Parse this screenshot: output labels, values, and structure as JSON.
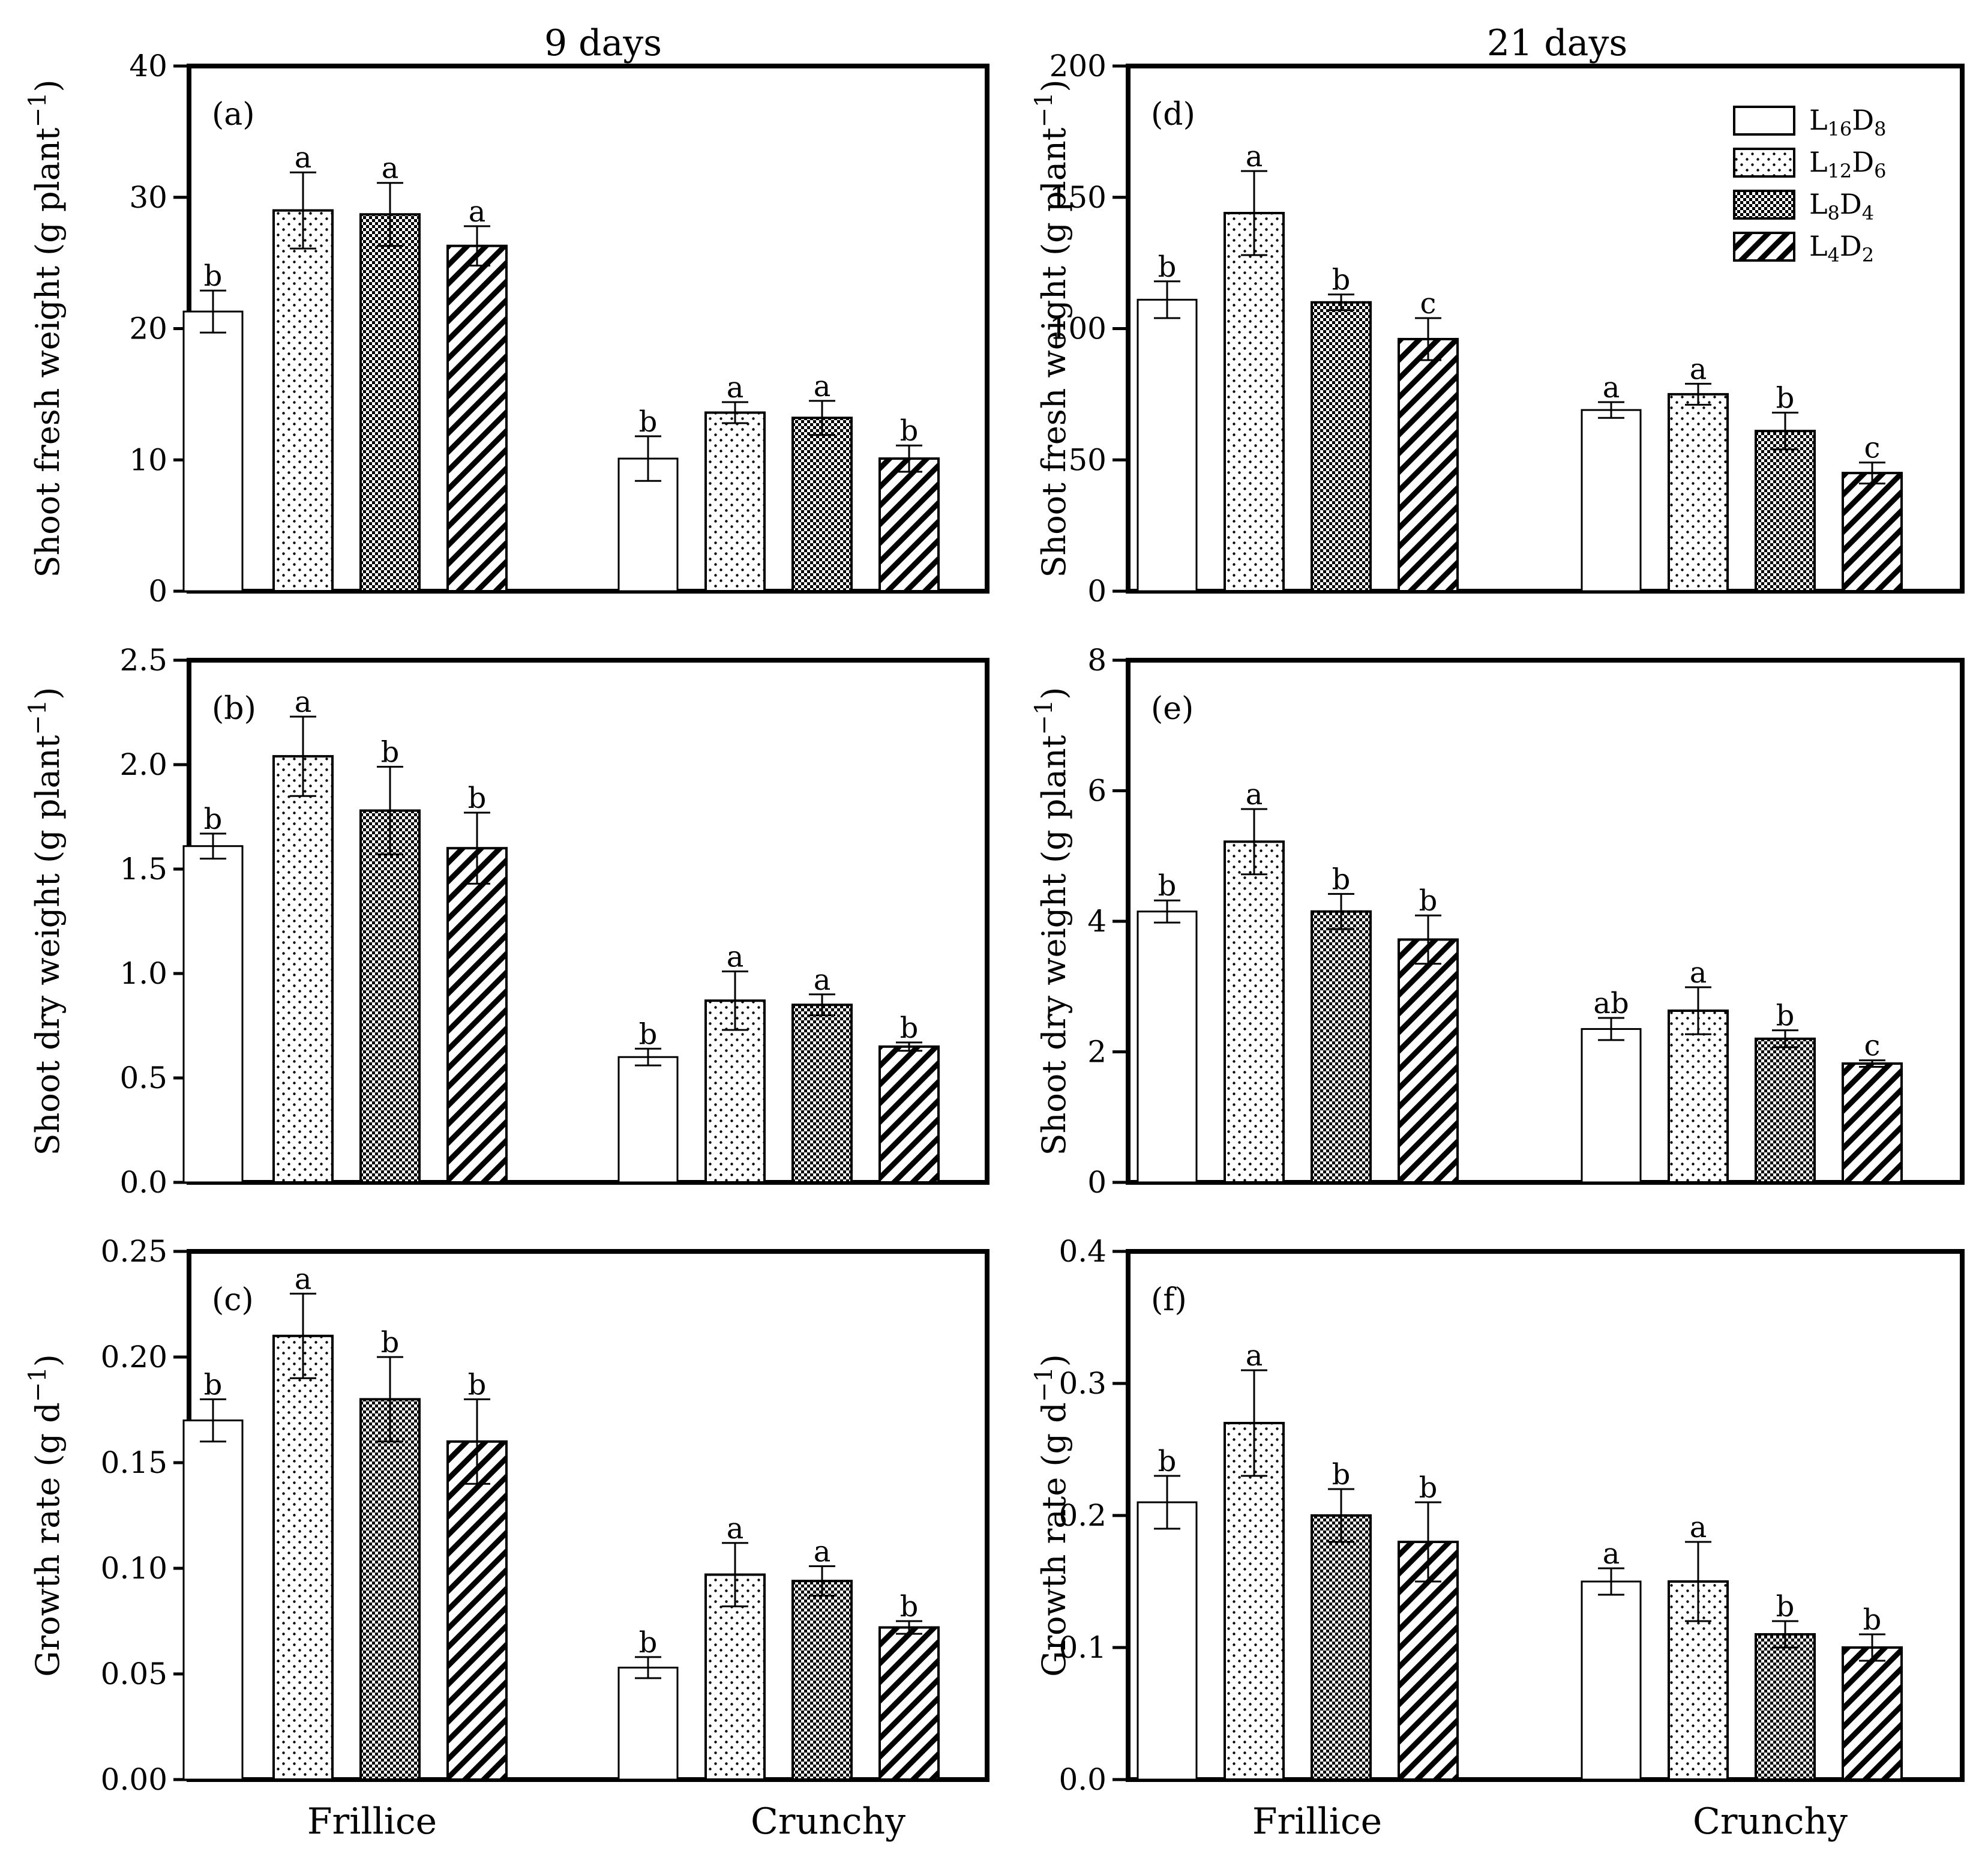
{
  "column_titles": [
    "9 days",
    "21 days"
  ],
  "legend": {
    "entries": [
      {
        "name": "L16D8",
        "base1": "L",
        "sub1": "16",
        "base2": "D",
        "sub2": "8",
        "pattern": "open"
      },
      {
        "name": "L12D6",
        "base1": "L",
        "sub1": "12",
        "base2": "D",
        "sub2": "6",
        "pattern": "dots"
      },
      {
        "name": "L8D4",
        "base1": "L",
        "sub1": "8",
        "base2": "D",
        "sub2": "4",
        "pattern": "checker"
      },
      {
        "name": "L4D2",
        "base1": "L",
        "sub1": "4",
        "base2": "D",
        "sub2": "2",
        "pattern": "hatch"
      }
    ],
    "placement": "top-right of panel (d)"
  },
  "chart_data": [
    {
      "type": "bar",
      "panel": "(a)",
      "column": "9 days",
      "title": "",
      "xlabel": "",
      "ylabel_main": "Shoot fresh weight (g plant",
      "ylabel_exp": "−1",
      "ylabel_close": ")",
      "categories": [
        "Frillice",
        "Crunchy"
      ],
      "ylim": [
        0,
        40
      ],
      "yticks": [
        0,
        10,
        20,
        30,
        40
      ],
      "ytick_labels": [
        "0",
        "10",
        "20",
        "30",
        "40"
      ],
      "series": [
        {
          "name": "L16D8",
          "values": [
            21.3,
            10.1
          ],
          "errors": [
            1.6,
            1.7
          ],
          "letters": [
            "b",
            "b"
          ]
        },
        {
          "name": "L12D6",
          "values": [
            29.0,
            13.6
          ],
          "errors": [
            2.9,
            0.8
          ],
          "letters": [
            "a",
            "a"
          ]
        },
        {
          "name": "L8D4",
          "values": [
            28.7,
            13.2
          ],
          "errors": [
            2.4,
            1.3
          ],
          "letters": [
            "a",
            "a"
          ]
        },
        {
          "name": "L4D2",
          "values": [
            26.3,
            10.1
          ],
          "errors": [
            1.5,
            1.0
          ],
          "letters": [
            "a",
            "b"
          ]
        }
      ]
    },
    {
      "type": "bar",
      "panel": "(b)",
      "column": "9 days",
      "title": "",
      "xlabel": "",
      "ylabel_main": "Shoot dry weight (g plant",
      "ylabel_exp": "−1",
      "ylabel_close": ")",
      "categories": [
        "Frillice",
        "Crunchy"
      ],
      "ylim": [
        0,
        2.5
      ],
      "yticks": [
        0,
        0.5,
        1.0,
        1.5,
        2.0,
        2.5
      ],
      "ytick_labels": [
        "0.0",
        "0.5",
        "1.0",
        "1.5",
        "2.0",
        "2.5"
      ],
      "series": [
        {
          "name": "L16D8",
          "values": [
            1.61,
            0.6
          ],
          "errors": [
            0.06,
            0.04
          ],
          "letters": [
            "b",
            "b"
          ]
        },
        {
          "name": "L12D6",
          "values": [
            2.04,
            0.87
          ],
          "errors": [
            0.19,
            0.14
          ],
          "letters": [
            "a",
            "a"
          ]
        },
        {
          "name": "L8D4",
          "values": [
            1.78,
            0.85
          ],
          "errors": [
            0.21,
            0.05
          ],
          "letters": [
            "b",
            "a"
          ]
        },
        {
          "name": "L4D2",
          "values": [
            1.6,
            0.65
          ],
          "errors": [
            0.17,
            0.02
          ],
          "letters": [
            "b",
            "b"
          ]
        }
      ]
    },
    {
      "type": "bar",
      "panel": "(c)",
      "column": "9 days",
      "title": "",
      "xlabel": "",
      "ylabel_main": "Growth rate (g d",
      "ylabel_exp": "−1",
      "ylabel_close": ")",
      "categories": [
        "Frillice",
        "Crunchy"
      ],
      "ylim": [
        0,
        0.25
      ],
      "yticks": [
        0,
        0.05,
        0.1,
        0.15,
        0.2,
        0.25
      ],
      "ytick_labels": [
        "0.00",
        "0.05",
        "0.10",
        "0.15",
        "0.20",
        "0.25"
      ],
      "series": [
        {
          "name": "L16D8",
          "values": [
            0.17,
            0.053
          ],
          "errors": [
            0.01,
            0.005
          ],
          "letters": [
            "b",
            "b"
          ]
        },
        {
          "name": "L12D6",
          "values": [
            0.21,
            0.097
          ],
          "errors": [
            0.02,
            0.015
          ],
          "letters": [
            "a",
            "a"
          ]
        },
        {
          "name": "L8D4",
          "values": [
            0.18,
            0.094
          ],
          "errors": [
            0.02,
            0.007
          ],
          "letters": [
            "b",
            "a"
          ]
        },
        {
          "name": "L4D2",
          "values": [
            0.16,
            0.072
          ],
          "errors": [
            0.02,
            0.003
          ],
          "letters": [
            "b",
            "b"
          ]
        }
      ]
    },
    {
      "type": "bar",
      "panel": "(d)",
      "column": "21 days",
      "title": "",
      "xlabel": "",
      "ylabel_main": "Shoot fresh weight (g plant",
      "ylabel_exp": "−1",
      "ylabel_close": ")",
      "categories": [
        "Frillice",
        "Crunchy"
      ],
      "ylim": [
        0,
        200
      ],
      "yticks": [
        0,
        50,
        100,
        150,
        200
      ],
      "ytick_labels": [
        "0",
        "50",
        "100",
        "150",
        "200"
      ],
      "series": [
        {
          "name": "L16D8",
          "values": [
            111,
            69
          ],
          "errors": [
            7,
            3
          ],
          "letters": [
            "b",
            "a"
          ]
        },
        {
          "name": "L12D6",
          "values": [
            144,
            75
          ],
          "errors": [
            16,
            4
          ],
          "letters": [
            "a",
            "a"
          ]
        },
        {
          "name": "L8D4",
          "values": [
            110,
            61
          ],
          "errors": [
            3,
            7
          ],
          "letters": [
            "b",
            "b"
          ]
        },
        {
          "name": "L4D2",
          "values": [
            96,
            45
          ],
          "errors": [
            8,
            4
          ],
          "letters": [
            "c",
            "c"
          ]
        }
      ]
    },
    {
      "type": "bar",
      "panel": "(e)",
      "column": "21 days",
      "title": "",
      "xlabel": "",
      "ylabel_main": "Shoot dry weight (g plant",
      "ylabel_exp": "−1",
      "ylabel_close": ")",
      "categories": [
        "Frillice",
        "Crunchy"
      ],
      "ylim": [
        0,
        8
      ],
      "yticks": [
        0,
        2,
        4,
        6,
        8
      ],
      "ytick_labels": [
        "0",
        "2",
        "4",
        "6",
        "8"
      ],
      "series": [
        {
          "name": "L16D8",
          "values": [
            4.15,
            2.35
          ],
          "errors": [
            0.17,
            0.17
          ],
          "letters": [
            "b",
            "ab"
          ]
        },
        {
          "name": "L12D6",
          "values": [
            5.22,
            2.63
          ],
          "errors": [
            0.5,
            0.36
          ],
          "letters": [
            "a",
            "a"
          ]
        },
        {
          "name": "L8D4",
          "values": [
            4.15,
            2.2
          ],
          "errors": [
            0.27,
            0.13
          ],
          "letters": [
            "b",
            "b"
          ]
        },
        {
          "name": "L4D2",
          "values": [
            3.72,
            1.82
          ],
          "errors": [
            0.37,
            0.05
          ],
          "letters": [
            "b",
            "c"
          ]
        }
      ]
    },
    {
      "type": "bar",
      "panel": "(f)",
      "column": "21 days",
      "title": "",
      "xlabel": "",
      "ylabel_main": "Growth rate (g d",
      "ylabel_exp": "−1",
      "ylabel_close": ")",
      "categories": [
        "Frillice",
        "Crunchy"
      ],
      "ylim": [
        0,
        0.4
      ],
      "yticks": [
        0,
        0.1,
        0.2,
        0.3,
        0.4
      ],
      "ytick_labels": [
        "0.0",
        "0.1",
        "0.2",
        "0.3",
        "0.4"
      ],
      "series": [
        {
          "name": "L16D8",
          "values": [
            0.21,
            0.15
          ],
          "errors": [
            0.02,
            0.01
          ],
          "letters": [
            "b",
            "a"
          ]
        },
        {
          "name": "L12D6",
          "values": [
            0.27,
            0.15
          ],
          "errors": [
            0.04,
            0.03
          ],
          "letters": [
            "a",
            "a"
          ]
        },
        {
          "name": "L8D4",
          "values": [
            0.2,
            0.11
          ],
          "errors": [
            0.02,
            0.01
          ],
          "letters": [
            "b",
            "b"
          ]
        },
        {
          "name": "L4D2",
          "values": [
            0.18,
            0.1
          ],
          "errors": [
            0.03,
            0.01
          ],
          "letters": [
            "b",
            "b"
          ]
        }
      ]
    }
  ]
}
